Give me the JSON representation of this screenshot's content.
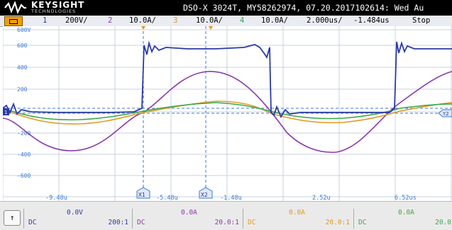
{
  "header": {
    "brand": "KEYSIGHT",
    "brand_sub": "TECHNOLOGIES",
    "instrument": "DSO-X 3024T, MY58262974, 07.20.2017102614: Wed Au"
  },
  "channel_bar": {
    "ch1_num": "1",
    "ch1_scale": "200V/",
    "ch2_num": "2",
    "ch2_scale": "10.0A/",
    "ch3_num": "3",
    "ch3_scale": "10.0A/",
    "ch4_num": "4",
    "ch4_scale": "10.0A/",
    "time_scale": "2.000us/",
    "delay": "-1.484us",
    "run_state": "Stop"
  },
  "grid": {
    "y_labels": [
      "600V",
      "600",
      "400",
      "200",
      "-200",
      "-400",
      "-600"
    ],
    "x_labels": [
      "-9.48u",
      "-5.48u",
      "-1.48u",
      "2.52u",
      "6.52us"
    ],
    "cursor_x1": "X1",
    "cursor_x2": "X2",
    "cursor_y2": "Y2",
    "ground_marker": "1"
  },
  "footer": {
    "channels": [
      {
        "value": "0.0V",
        "coupling": "DC",
        "ratio": "200:1"
      },
      {
        "value": "0.0A",
        "coupling": "DC",
        "ratio": "20.0:1"
      },
      {
        "value": "0.0A",
        "coupling": "DC",
        "ratio": "20.0:1"
      },
      {
        "value": "0.0A",
        "coupling": "DC",
        "ratio": "20.0"
      }
    ]
  },
  "colors": {
    "ch1": "#2a3aa8",
    "ch2": "#8a3aa8",
    "ch3": "#e09a20",
    "ch4": "#3aa84a",
    "cursor": "#3a78d8",
    "grid": "#c8d0e0"
  }
}
